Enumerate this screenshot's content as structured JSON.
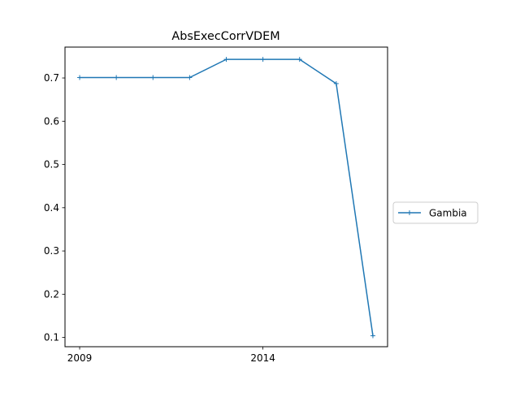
{
  "chart_data": {
    "type": "line",
    "title": "AbsExecCorrVDEM",
    "xlabel": "",
    "ylabel": "",
    "x": [
      2009,
      2010,
      2011,
      2012,
      2013,
      2014,
      2015,
      2016,
      2017
    ],
    "series": [
      {
        "name": "Gambia",
        "color": "#1f77b4",
        "marker": "plus",
        "values": [
          0.701,
          0.701,
          0.701,
          0.701,
          0.743,
          0.743,
          0.743,
          0.687,
          0.104
        ]
      }
    ],
    "xlim": [
      2008.6,
      2017.4
    ],
    "ylim": [
      0.0786,
      0.7714
    ],
    "x_ticks": [
      {
        "value": 2009,
        "label": "2009"
      },
      {
        "value": 2014,
        "label": "2014"
      }
    ],
    "y_ticks": [
      {
        "value": 0.1,
        "label": "0.1"
      },
      {
        "value": 0.2,
        "label": "0.2"
      },
      {
        "value": 0.3,
        "label": "0.3"
      },
      {
        "value": 0.4,
        "label": "0.4"
      },
      {
        "value": 0.5,
        "label": "0.5"
      },
      {
        "value": 0.6,
        "label": "0.6"
      },
      {
        "value": 0.7,
        "label": "0.7"
      }
    ],
    "grid": false,
    "legend_position": "outside-right"
  }
}
